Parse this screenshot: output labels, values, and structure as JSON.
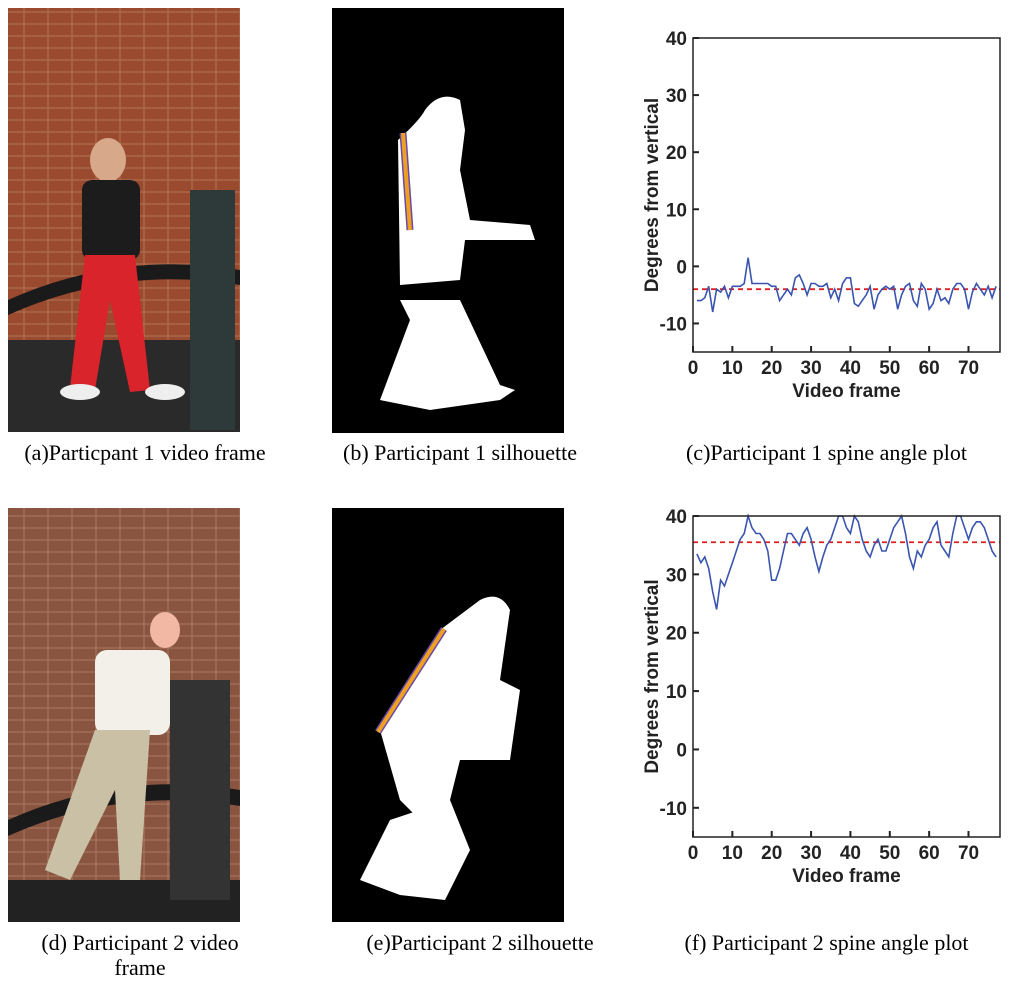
{
  "chart_data": [
    {
      "type": "line",
      "y_label": "Degrees from vertical",
      "x_label": "Video frame",
      "xlim": [
        0,
        78
      ],
      "ylim": [
        -15,
        40
      ],
      "xticks": [
        0,
        10,
        20,
        30,
        40,
        50,
        60,
        70
      ],
      "yticks": [
        -10,
        0,
        10,
        20,
        30,
        40
      ],
      "x": [
        1,
        2,
        3,
        4,
        5,
        6,
        7,
        8,
        9,
        10,
        11,
        12,
        13,
        14,
        15,
        16,
        17,
        18,
        19,
        20,
        21,
        22,
        23,
        24,
        25,
        26,
        27,
        28,
        29,
        30,
        31,
        32,
        33,
        34,
        35,
        36,
        37,
        38,
        39,
        40,
        41,
        42,
        43,
        44,
        45,
        46,
        47,
        48,
        49,
        50,
        51,
        52,
        53,
        54,
        55,
        56,
        57,
        58,
        59,
        60,
        61,
        62,
        63,
        64,
        65,
        66,
        67,
        68,
        69,
        70,
        71,
        72,
        73,
        74,
        75,
        76,
        77
      ],
      "series": [
        {
          "color": "#3a55b0",
          "values": [
            -6,
            -6,
            -5.5,
            -3.5,
            -8,
            -4,
            -4.5,
            -3.5,
            -5.5,
            -3.5,
            -3.5,
            -3.5,
            -3,
            1.5,
            -3,
            -3,
            -3,
            -3,
            -3,
            -3.5,
            -3.5,
            -6,
            -5,
            -4,
            -5,
            -2,
            -1.5,
            -3,
            -5,
            -3,
            -3,
            -3.5,
            -3.5,
            -3,
            -5.5,
            -4,
            -6,
            -3,
            -2,
            -2,
            -6.5,
            -7,
            -6,
            -5,
            -3.5,
            -7.5,
            -5,
            -4,
            -3.5,
            -4,
            -3.5,
            -7.5,
            -5,
            -3.5,
            -3,
            -6,
            -7,
            -3,
            -4,
            -7.5,
            -6.5,
            -4,
            -6,
            -5.5,
            -6.5,
            -4,
            -3,
            -3,
            -4,
            -7.5,
            -4.5,
            -3,
            -4,
            -5,
            -3.5,
            -5.5,
            -3.5
          ]
        }
      ],
      "mean_line": -4,
      "mean_color": "#e02020"
    },
    {
      "type": "line",
      "y_label": "Degrees from vertical",
      "x_label": "Video frame",
      "xlim": [
        0,
        78
      ],
      "ylim": [
        -15,
        40
      ],
      "xticks": [
        0,
        10,
        20,
        30,
        40,
        50,
        60,
        70
      ],
      "yticks": [
        -10,
        0,
        10,
        20,
        30,
        40
      ],
      "x": [
        1,
        2,
        3,
        4,
        5,
        6,
        7,
        8,
        9,
        10,
        11,
        12,
        13,
        14,
        15,
        16,
        17,
        18,
        19,
        20,
        21,
        22,
        23,
        24,
        25,
        26,
        27,
        28,
        29,
        30,
        31,
        32,
        33,
        34,
        35,
        36,
        37,
        38,
        39,
        40,
        41,
        42,
        43,
        44,
        45,
        46,
        47,
        48,
        49,
        50,
        51,
        52,
        53,
        54,
        55,
        56,
        57,
        58,
        59,
        60,
        61,
        62,
        63,
        64,
        65,
        66,
        67,
        68,
        69,
        70,
        71,
        72,
        73,
        74,
        75,
        76,
        77
      ],
      "series": [
        {
          "color": "#3a55b0",
          "values": [
            33.5,
            32,
            33,
            31,
            27,
            24,
            29,
            28,
            30,
            32,
            34,
            36,
            37,
            40,
            38,
            37,
            37,
            36,
            34,
            29,
            29,
            31,
            34,
            37,
            37,
            36,
            35,
            37,
            38,
            36,
            33,
            30.5,
            33,
            35,
            36,
            38,
            40,
            40,
            38,
            37,
            40,
            39,
            36,
            34,
            33,
            35,
            36,
            34,
            34,
            36,
            38,
            39,
            40,
            37,
            33,
            31,
            34,
            33,
            35,
            36,
            38,
            39,
            35,
            34,
            33,
            37,
            40,
            40,
            38,
            36,
            38,
            39,
            39,
            38,
            36,
            34,
            33
          ]
        }
      ],
      "mean_line": 35.5,
      "mean_color": "#e02020"
    }
  ],
  "captions": [
    "(a)Particpant 1 video frame",
    "(b)  Participant 1 silhouette",
    "(c)Participant 1 spine angle plot",
    "(d)  Participant 2 video frame",
    "(e)Participant 2 silhouette",
    "(f) Participant 2 spine angle plot"
  ]
}
